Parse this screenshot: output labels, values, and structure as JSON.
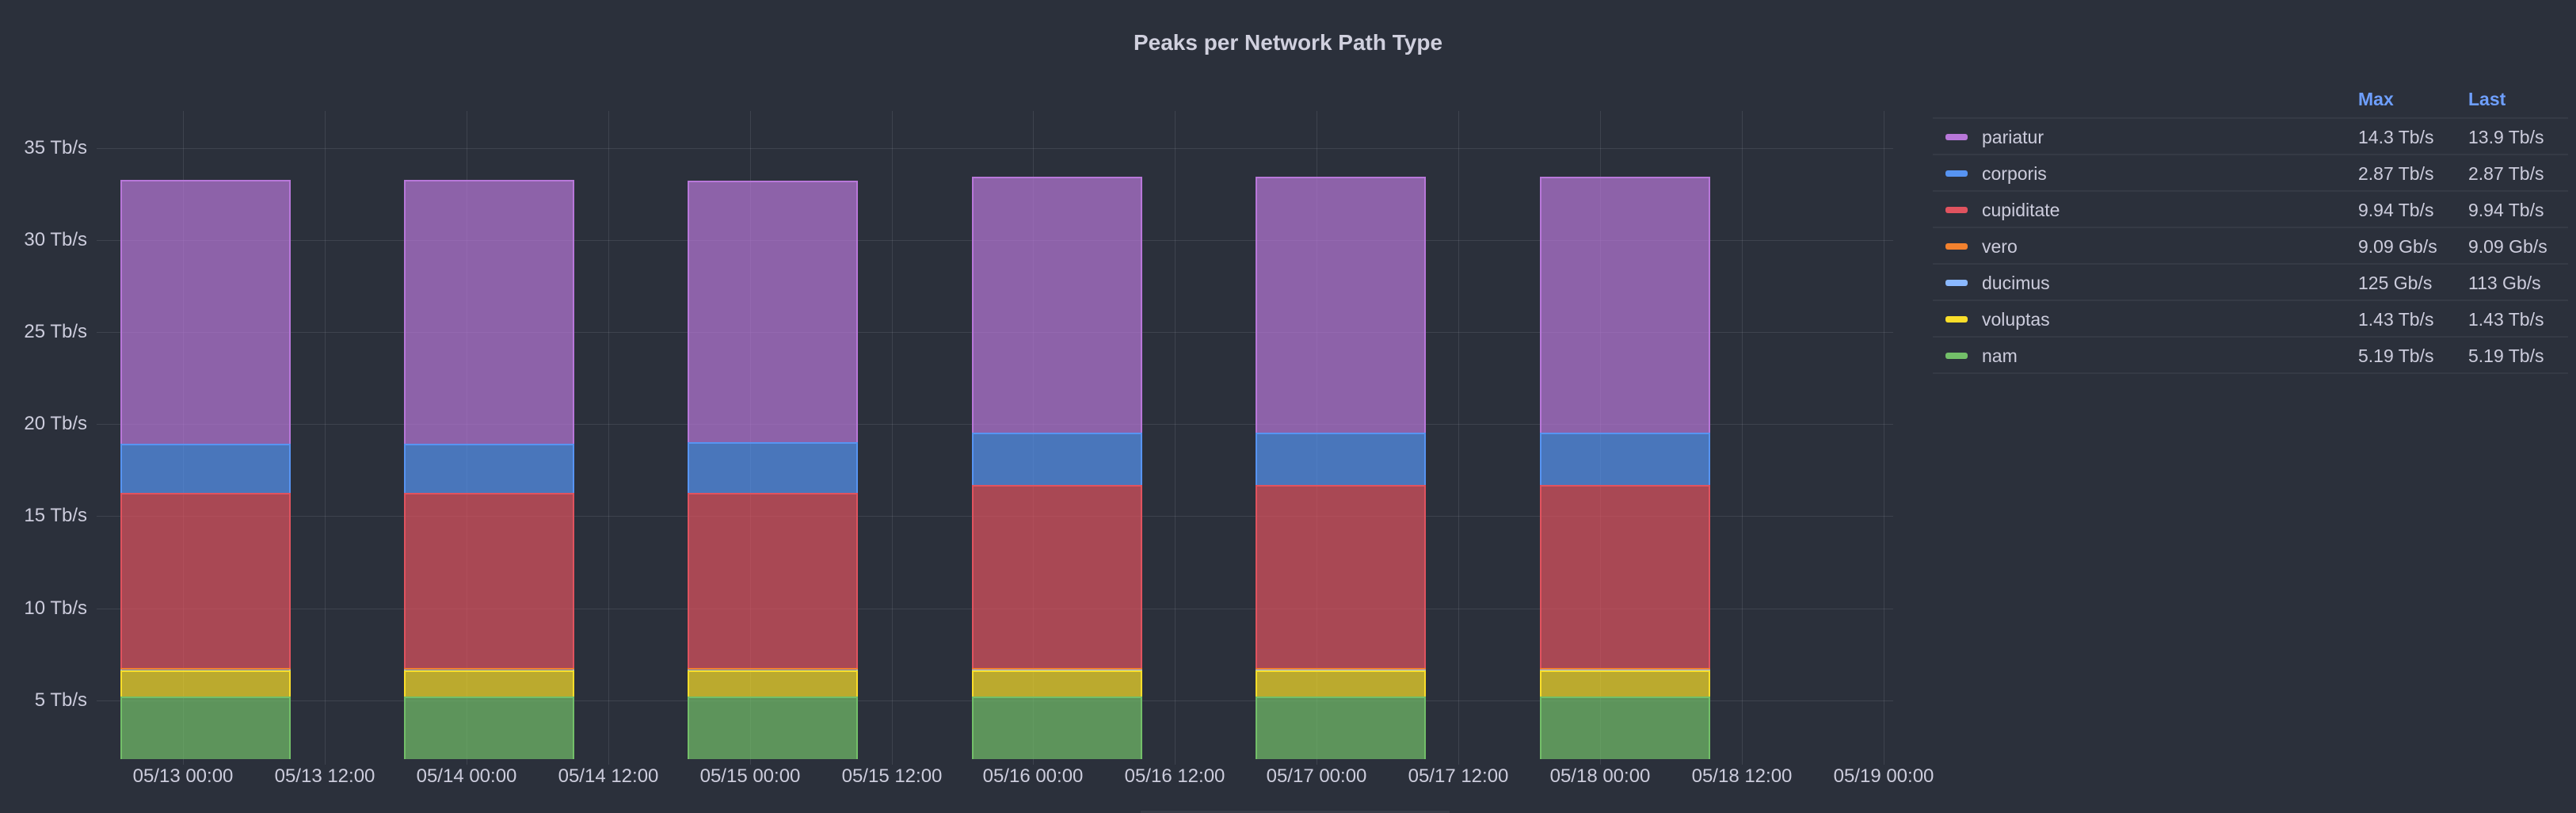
{
  "panel": {
    "title": "Peaks per Network Path Type"
  },
  "legend": {
    "columns": {
      "max": "Max",
      "last": "Last"
    },
    "items": [
      {
        "name": "pariatur",
        "color": "#b877d9",
        "max": "14.3 Tb/s",
        "last": "13.9 Tb/s"
      },
      {
        "name": "corporis",
        "color": "#5794f2",
        "max": "2.87 Tb/s",
        "last": "2.87 Tb/s"
      },
      {
        "name": "cupiditate",
        "color": "#e0535f",
        "max": "9.94 Tb/s",
        "last": "9.94 Tb/s"
      },
      {
        "name": "vero",
        "color": "#f2812e",
        "max": "9.09 Gb/s",
        "last": "9.09 Gb/s"
      },
      {
        "name": "ducimus",
        "color": "#8ab8ff",
        "max": "125 Gb/s",
        "last": "113 Gb/s"
      },
      {
        "name": "voluptas",
        "color": "#fade2a",
        "max": "1.43 Tb/s",
        "last": "1.43 Tb/s"
      },
      {
        "name": "nam",
        "color": "#73bf69",
        "max": "5.19 Tb/s",
        "last": "5.19 Tb/s"
      }
    ]
  },
  "chart_data": {
    "type": "bar",
    "stacked": true,
    "title": "Peaks per Network Path Type",
    "xlabel": "",
    "ylabel": "",
    "unit": "Tb/s",
    "ylim": [
      1.8,
      37.5
    ],
    "yticks": [
      "5 Tb/s",
      "10 Tb/s",
      "15 Tb/s",
      "20 Tb/s",
      "25 Tb/s",
      "30 Tb/s",
      "35 Tb/s"
    ],
    "ytick_values": [
      5,
      10,
      15,
      20,
      25,
      30,
      35
    ],
    "xticks": [
      "05/13 00:00",
      "05/13 12:00",
      "05/14 00:00",
      "05/14 12:00",
      "05/15 00:00",
      "05/15 12:00",
      "05/16 00:00",
      "05/16 12:00",
      "05/17 00:00",
      "05/17 12:00",
      "05/18 00:00",
      "05/18 12:00",
      "05/19 00:00"
    ],
    "categories": [
      "05/13",
      "05/14",
      "05/15",
      "05/16",
      "05/17",
      "05/18"
    ],
    "legend_position": "right",
    "grid": true,
    "series": [
      {
        "name": "nam",
        "color": "#73bf69",
        "values": [
          5.19,
          5.19,
          5.19,
          5.19,
          5.19,
          5.19
        ]
      },
      {
        "name": "voluptas",
        "color": "#fade2a",
        "values": [
          1.43,
          1.43,
          1.43,
          1.43,
          1.43,
          1.43
        ]
      },
      {
        "name": "ducimus",
        "color": "#8ab8ff",
        "values": [
          0.12,
          0.12,
          0.12,
          0.113,
          0.113,
          0.113
        ]
      },
      {
        "name": "vero",
        "color": "#f2812e",
        "values": [
          0.009,
          0.009,
          0.009,
          0.009,
          0.009,
          0.009
        ]
      },
      {
        "name": "cupiditate",
        "color": "#e0535f",
        "values": [
          9.5,
          9.5,
          9.5,
          9.94,
          9.94,
          9.94
        ]
      },
      {
        "name": "corporis",
        "color": "#5794f2",
        "values": [
          2.7,
          2.7,
          2.75,
          2.87,
          2.87,
          2.87
        ]
      },
      {
        "name": "pariatur",
        "color": "#b877d9",
        "values": [
          14.3,
          14.3,
          14.2,
          13.9,
          13.9,
          13.9
        ]
      }
    ]
  }
}
